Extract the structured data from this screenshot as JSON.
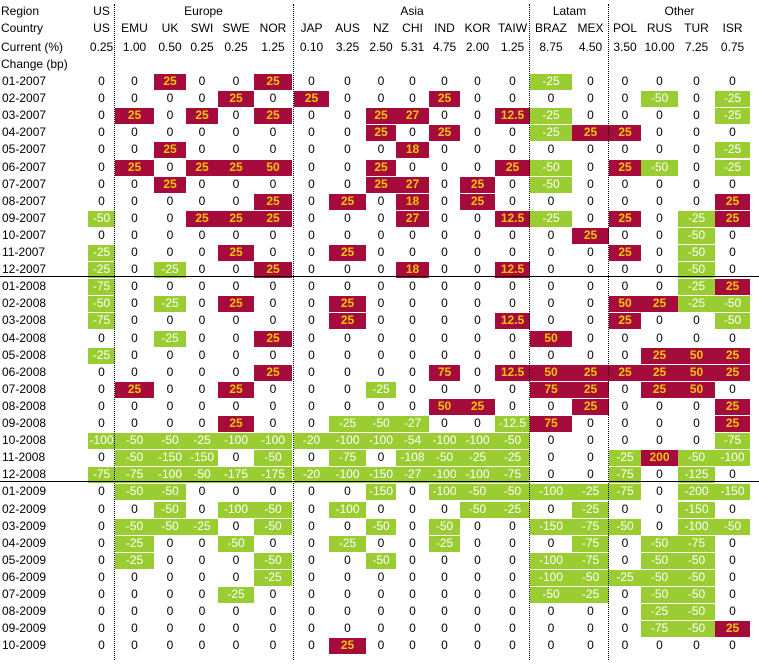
{
  "header": {
    "region_label": "Region",
    "country_label": "Country",
    "current_label": "Current (%)",
    "change_label": "Change (bp)"
  },
  "colors": {
    "hike": "#a50c3c",
    "cut": "#9acd32",
    "hike_text": "#f5c400",
    "cut_text": "#ffffff"
  },
  "chart_data": {
    "type": "table",
    "regions": [
      {
        "name": "US",
        "countries": [
          "US"
        ]
      },
      {
        "name": "Europe",
        "countries": [
          "EMU",
          "UK",
          "SWI",
          "SWE",
          "NOR"
        ]
      },
      {
        "name": "Asia",
        "countries": [
          "JAP",
          "AUS",
          "NZ",
          "CHI",
          "IND",
          "KOR",
          "TAIW"
        ]
      },
      {
        "name": "Latam",
        "countries": [
          "BRAZ",
          "MEX"
        ]
      },
      {
        "name": "Other",
        "countries": [
          "POL",
          "RUS",
          "TUR",
          "ISR"
        ]
      }
    ],
    "current": [
      "0.25",
      "1.00",
      "0.50",
      "0.25",
      "0.25",
      "1.25",
      "0.10",
      "3.25",
      "2.50",
      "5.31",
      "4.75",
      "2.00",
      "1.25",
      "8.75",
      "4.50",
      "3.50",
      "10.00",
      "7.25",
      "0.75"
    ],
    "rows": [
      {
        "date": "01-2007",
        "values": [
          "0",
          "0",
          "25",
          "0",
          "0",
          "25",
          "0",
          "0",
          "0",
          "0",
          "0",
          "0",
          "0",
          "-25",
          "0",
          "0",
          "0",
          "0",
          "0"
        ]
      },
      {
        "date": "02-2007",
        "values": [
          "0",
          "0",
          "0",
          "0",
          "25",
          "0",
          "25",
          "0",
          "0",
          "0",
          "25",
          "0",
          "0",
          "0",
          "0",
          "0",
          "-50",
          "0",
          "-25"
        ]
      },
      {
        "date": "03-2007",
        "values": [
          "0",
          "25",
          "0",
          "25",
          "0",
          "25",
          "0",
          "0",
          "25",
          "27",
          "0",
          "0",
          "12.5",
          "-25",
          "0",
          "0",
          "0",
          "0",
          "-25"
        ]
      },
      {
        "date": "04-2007",
        "values": [
          "0",
          "0",
          "0",
          "0",
          "0",
          "0",
          "0",
          "0",
          "25",
          "0",
          "25",
          "0",
          "0",
          "-25",
          "25",
          "25",
          "0",
          "0",
          "0"
        ]
      },
      {
        "date": "05-2007",
        "values": [
          "0",
          "0",
          "25",
          "0",
          "0",
          "0",
          "0",
          "0",
          "0",
          "18",
          "0",
          "0",
          "0",
          "0",
          "0",
          "0",
          "0",
          "0",
          "-25"
        ]
      },
      {
        "date": "06-2007",
        "values": [
          "0",
          "25",
          "0",
          "25",
          "25",
          "50",
          "0",
          "0",
          "25",
          "0",
          "0",
          "0",
          "25",
          "-50",
          "0",
          "25",
          "-50",
          "0",
          "-25"
        ]
      },
      {
        "date": "07-2007",
        "values": [
          "0",
          "0",
          "25",
          "0",
          "0",
          "0",
          "0",
          "0",
          "25",
          "27",
          "0",
          "25",
          "0",
          "-50",
          "0",
          "0",
          "0",
          "0",
          "0"
        ]
      },
      {
        "date": "08-2007",
        "values": [
          "0",
          "0",
          "0",
          "0",
          "0",
          "25",
          "0",
          "25",
          "0",
          "18",
          "0",
          "25",
          "0",
          "0",
          "0",
          "0",
          "0",
          "0",
          "25"
        ]
      },
      {
        "date": "09-2007",
        "values": [
          "-50",
          "0",
          "0",
          "25",
          "25",
          "25",
          "0",
          "0",
          "0",
          "27",
          "0",
          "0",
          "12.5",
          "-25",
          "0",
          "25",
          "0",
          "-25",
          "25"
        ]
      },
      {
        "date": "10-2007",
        "values": [
          "0",
          "0",
          "0",
          "0",
          "0",
          "0",
          "0",
          "0",
          "0",
          "0",
          "0",
          "0",
          "0",
          "0",
          "25",
          "0",
          "0",
          "-50",
          "0"
        ]
      },
      {
        "date": "11-2007",
        "values": [
          "-25",
          "0",
          "0",
          "0",
          "25",
          "0",
          "0",
          "25",
          "0",
          "0",
          "0",
          "0",
          "0",
          "0",
          "0",
          "25",
          "0",
          "-50",
          "0"
        ]
      },
      {
        "date": "12-2007",
        "values": [
          "-25",
          "0",
          "-25",
          "0",
          "0",
          "25",
          "0",
          "0",
          "0",
          "18",
          "0",
          "0",
          "12.5",
          "0",
          "0",
          "0",
          "0",
          "-50",
          "0"
        ]
      },
      {
        "date": "01-2008",
        "values": [
          "-75",
          "0",
          "0",
          "0",
          "0",
          "0",
          "0",
          "0",
          "0",
          "0",
          "0",
          "0",
          "0",
          "0",
          "0",
          "0",
          "0",
          "-25",
          "25"
        ]
      },
      {
        "date": "02-2008",
        "values": [
          "-50",
          "0",
          "-25",
          "0",
          "25",
          "0",
          "0",
          "25",
          "0",
          "0",
          "0",
          "0",
          "0",
          "0",
          "0",
          "50",
          "25",
          "-25",
          "-50"
        ]
      },
      {
        "date": "03-2008",
        "values": [
          "-75",
          "0",
          "0",
          "0",
          "0",
          "0",
          "0",
          "25",
          "0",
          "0",
          "0",
          "0",
          "12.5",
          "0",
          "0",
          "25",
          "0",
          "0",
          "-50"
        ]
      },
      {
        "date": "04-2008",
        "values": [
          "0",
          "0",
          "-25",
          "0",
          "0",
          "25",
          "0",
          "0",
          "0",
          "0",
          "0",
          "0",
          "0",
          "50",
          "0",
          "0",
          "0",
          "0",
          "0"
        ]
      },
      {
        "date": "05-2008",
        "values": [
          "-25",
          "0",
          "0",
          "0",
          "0",
          "0",
          "0",
          "0",
          "0",
          "0",
          "0",
          "0",
          "0",
          "0",
          "0",
          "0",
          "25",
          "50",
          "25"
        ]
      },
      {
        "date": "06-2008",
        "values": [
          "0",
          "0",
          "0",
          "0",
          "0",
          "25",
          "0",
          "0",
          "0",
          "0",
          "75",
          "0",
          "12.5",
          "50",
          "25",
          "25",
          "25",
          "50",
          "25"
        ]
      },
      {
        "date": "07-2008",
        "values": [
          "0",
          "25",
          "0",
          "0",
          "25",
          "0",
          "0",
          "0",
          "-25",
          "0",
          "0",
          "0",
          "0",
          "75",
          "25",
          "0",
          "25",
          "50",
          "0"
        ]
      },
      {
        "date": "08-2008",
        "values": [
          "0",
          "0",
          "0",
          "0",
          "0",
          "0",
          "0",
          "0",
          "0",
          "0",
          "50",
          "25",
          "0",
          "0",
          "25",
          "0",
          "0",
          "0",
          "25"
        ]
      },
      {
        "date": "09-2008",
        "values": [
          "0",
          "0",
          "0",
          "0",
          "25",
          "0",
          "0",
          "-25",
          "-50",
          "-27",
          "0",
          "0",
          "-12.5",
          "75",
          "0",
          "0",
          "0",
          "0",
          "25"
        ]
      },
      {
        "date": "10-2008",
        "values": [
          "-100",
          "-50",
          "-50",
          "-25",
          "-100",
          "-100",
          "-20",
          "-100",
          "-100",
          "-54",
          "-100",
          "-100",
          "-50",
          "0",
          "0",
          "0",
          "0",
          "0",
          "-75"
        ]
      },
      {
        "date": "11-2008",
        "values": [
          "0",
          "-50",
          "-150",
          "-150",
          "0",
          "-50",
          "0",
          "-75",
          "0",
          "-108",
          "-50",
          "-25",
          "-25",
          "0",
          "0",
          "-25",
          "200",
          "-50",
          "-100"
        ]
      },
      {
        "date": "12-2008",
        "values": [
          "-75",
          "-75",
          "-100",
          "-50",
          "-175",
          "-175",
          "-20",
          "-100",
          "-150",
          "-27",
          "-100",
          "-100",
          "-75",
          "0",
          "0",
          "-75",
          "0",
          "-125",
          "0"
        ]
      },
      {
        "date": "01-2009",
        "values": [
          "0",
          "-50",
          "-50",
          "0",
          "0",
          "0",
          "0",
          "0",
          "-150",
          "0",
          "-100",
          "-50",
          "-50",
          "-100",
          "-25",
          "-75",
          "0",
          "-200",
          "-150"
        ]
      },
      {
        "date": "02-2009",
        "values": [
          "0",
          "0",
          "-50",
          "0",
          "-100",
          "-50",
          "0",
          "-100",
          "0",
          "0",
          "0",
          "-50",
          "-25",
          "0",
          "-25",
          "0",
          "0",
          "-150",
          "0"
        ]
      },
      {
        "date": "03-2009",
        "values": [
          "0",
          "-50",
          "-50",
          "-25",
          "0",
          "-50",
          "0",
          "0",
          "-50",
          "0",
          "-50",
          "0",
          "0",
          "-150",
          "-75",
          "-50",
          "0",
          "-100",
          "-50"
        ]
      },
      {
        "date": "04-2009",
        "values": [
          "0",
          "-25",
          "0",
          "0",
          "-50",
          "0",
          "0",
          "-25",
          "0",
          "0",
          "-25",
          "0",
          "0",
          "0",
          "-75",
          "0",
          "-50",
          "-75",
          "0"
        ]
      },
      {
        "date": "05-2009",
        "values": [
          "0",
          "-25",
          "0",
          "0",
          "0",
          "-50",
          "0",
          "0",
          "-50",
          "0",
          "0",
          "0",
          "0",
          "-100",
          "-75",
          "0",
          "-50",
          "-50",
          "0"
        ]
      },
      {
        "date": "06-2009",
        "values": [
          "0",
          "0",
          "0",
          "0",
          "0",
          "-25",
          "0",
          "0",
          "0",
          "0",
          "0",
          "0",
          "0",
          "-100",
          "-50",
          "-25",
          "-50",
          "-50",
          "0"
        ]
      },
      {
        "date": "07-2009",
        "values": [
          "0",
          "0",
          "0",
          "0",
          "-25",
          "0",
          "0",
          "0",
          "0",
          "0",
          "0",
          "0",
          "0",
          "-50",
          "-25",
          "0",
          "-50",
          "-50",
          "0"
        ]
      },
      {
        "date": "08-2009",
        "values": [
          "0",
          "0",
          "0",
          "0",
          "0",
          "0",
          "0",
          "0",
          "0",
          "0",
          "0",
          "0",
          "0",
          "0",
          "0",
          "0",
          "-25",
          "-50",
          "0"
        ]
      },
      {
        "date": "09-2009",
        "values": [
          "0",
          "0",
          "0",
          "0",
          "0",
          "0",
          "0",
          "0",
          "0",
          "0",
          "0",
          "0",
          "0",
          "0",
          "0",
          "0",
          "-75",
          "-50",
          "25"
        ]
      },
      {
        "date": "10-2009",
        "values": [
          "0",
          "0",
          "0",
          "0",
          "0",
          "0",
          "0",
          "25",
          "0",
          "0",
          "0",
          "0",
          "0",
          "0",
          "0",
          "0",
          "0",
          "0",
          "0"
        ]
      }
    ]
  }
}
